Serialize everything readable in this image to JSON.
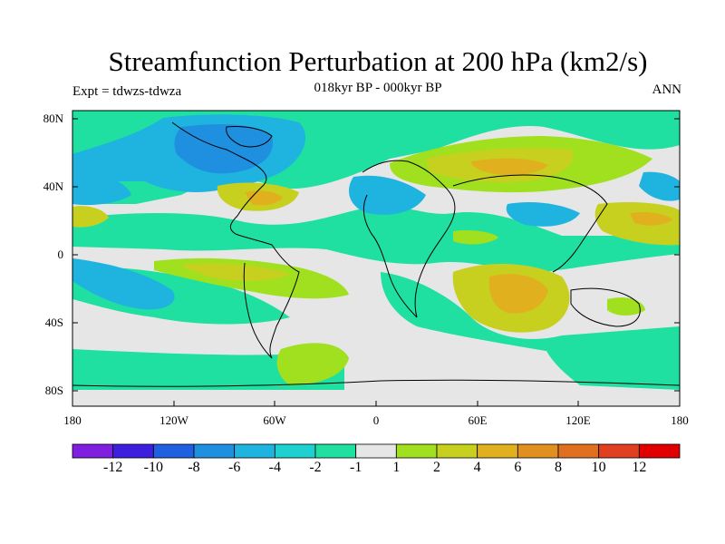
{
  "title": "Streamfunction Perturbation at 200 hPa (km2/s)",
  "subtitle": "018kyr BP - 000kyr BP",
  "left_label": "Expt = tdwzs-tdwza",
  "right_label": "ANN",
  "lat_ticks": [
    "80N",
    "40N",
    "0",
    "40S",
    "80S"
  ],
  "lon_ticks": [
    "180",
    "120W",
    "60W",
    "0",
    "60E",
    "120E",
    "180"
  ],
  "colorbar": {
    "colors": [
      "#7f1fe0",
      "#3d1fe0",
      "#1f5fe0",
      "#1f8fe0",
      "#1fb3e0",
      "#1fd0d0",
      "#1fe0a0",
      "#e6e6e6",
      "#a0e01f",
      "#c8d01f",
      "#e0b01f",
      "#e0901f",
      "#e0701f",
      "#e0401f",
      "#e00000"
    ],
    "labels": [
      "-12",
      "-10",
      "-8",
      "-6",
      "-4",
      "-2",
      "-1",
      "1",
      "2",
      "4",
      "6",
      "8",
      "10",
      "12"
    ]
  }
}
